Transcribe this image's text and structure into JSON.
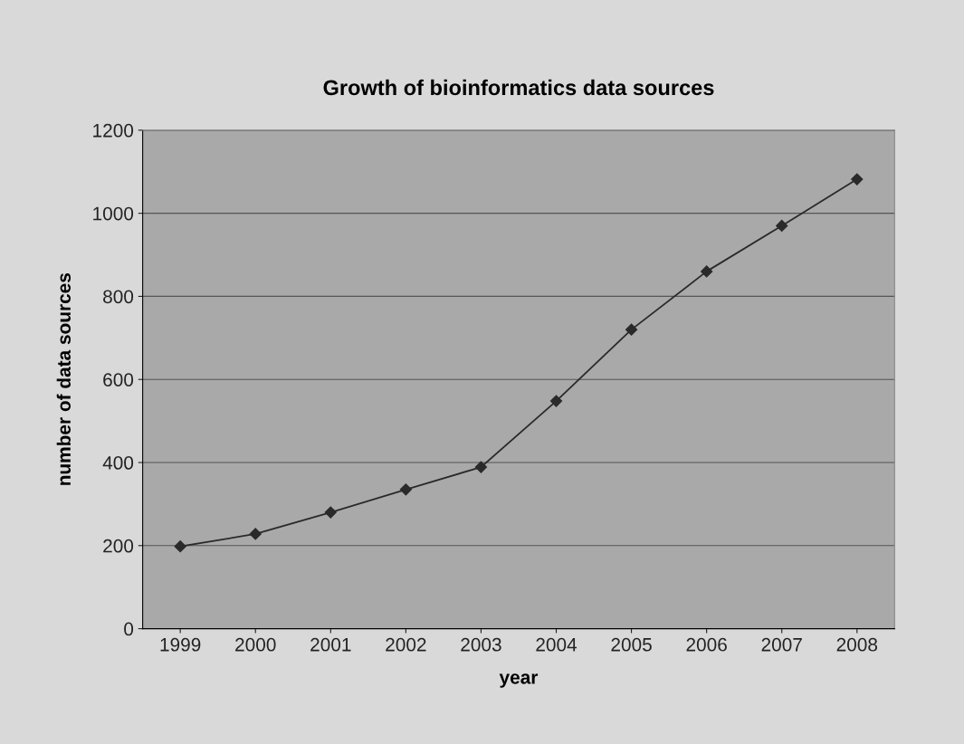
{
  "chart_data": {
    "type": "line",
    "title": "Growth of bioinformatics data sources",
    "xlabel": "year",
    "ylabel": "number of data sources",
    "categories": [
      "1999",
      "2000",
      "2001",
      "2002",
      "2003",
      "2004",
      "2005",
      "2006",
      "2007",
      "2008"
    ],
    "series": [
      {
        "color": "#2a2a2a",
        "values": [
          198,
          228,
          280,
          335,
          389,
          548,
          720,
          860,
          970,
          1082
        ]
      }
    ],
    "ylim": [
      0,
      1200
    ],
    "yticks": [
      0,
      200,
      400,
      600,
      800,
      1000,
      1200
    ],
    "grid": "y",
    "marker": "diamond",
    "line_style": "solid",
    "legend": false
  }
}
